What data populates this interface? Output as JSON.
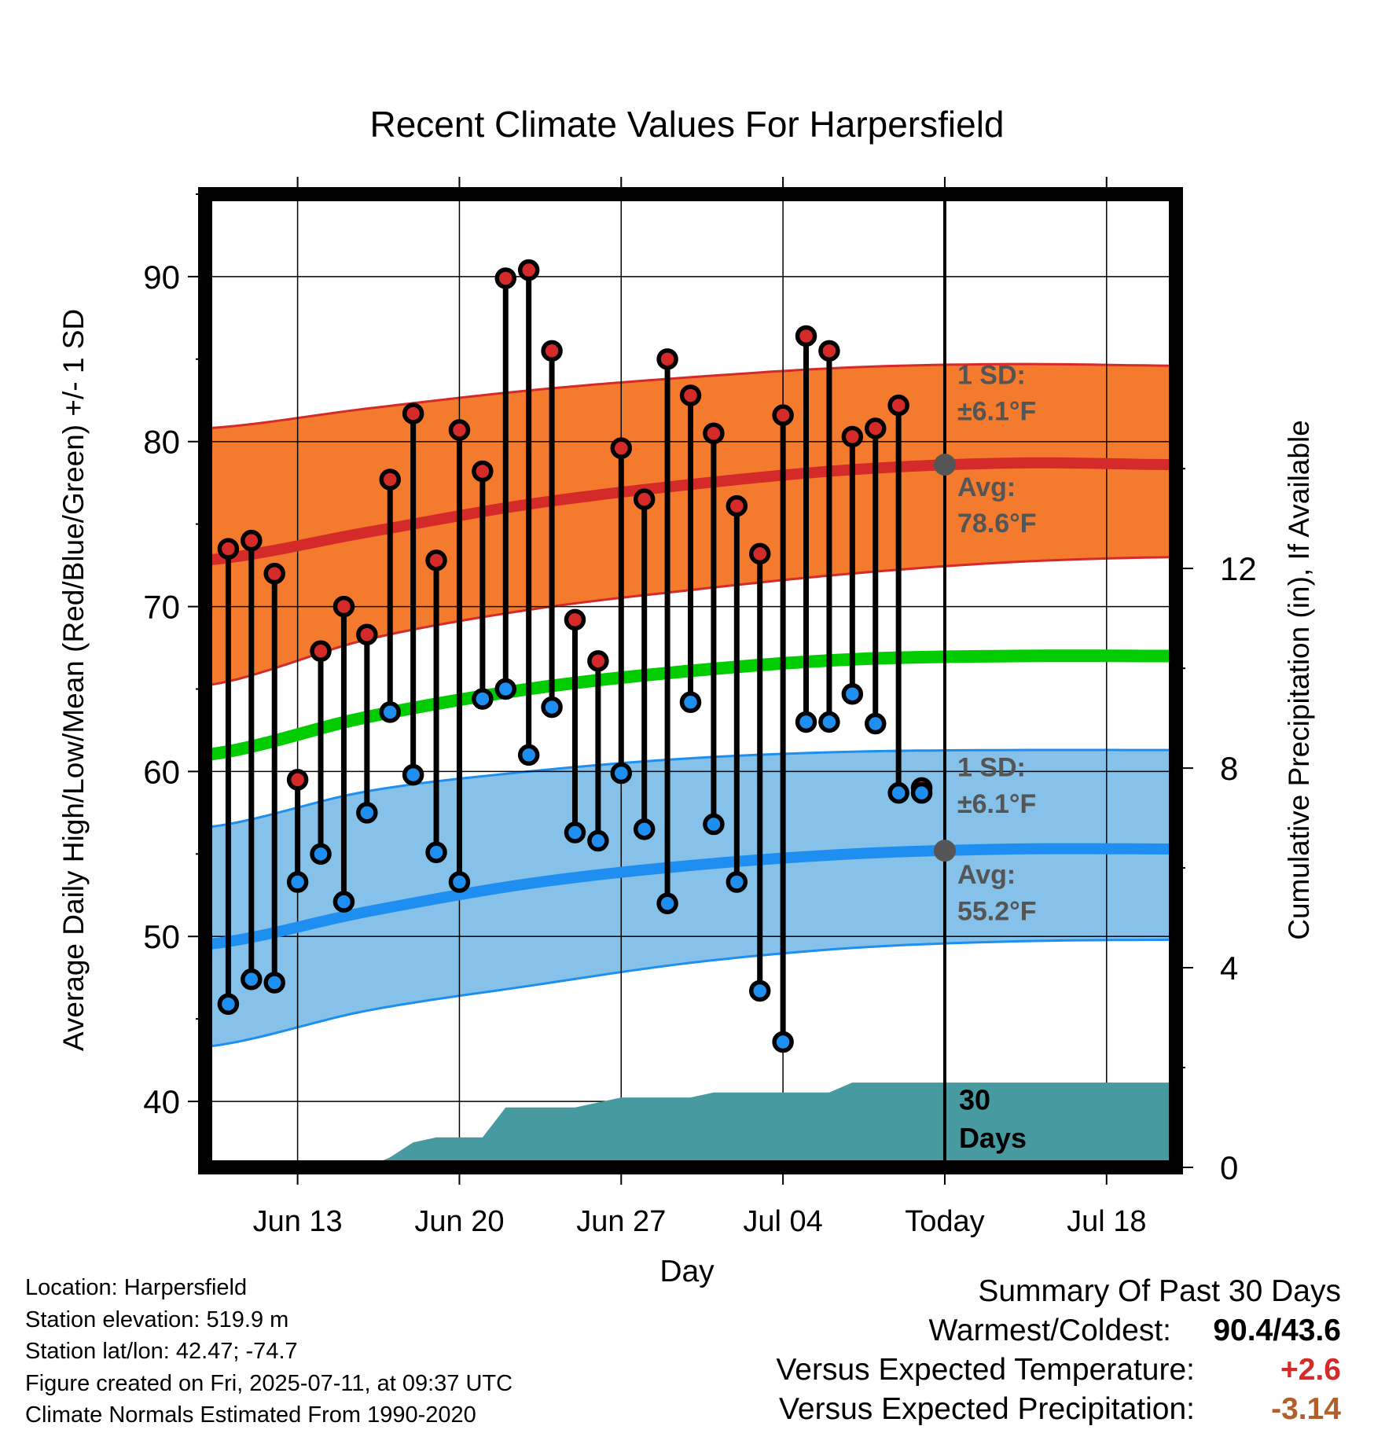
{
  "chart_data": {
    "type": "line",
    "title": "Recent Climate Values For Harpersfield",
    "xlabel": "Day",
    "ylabel": "Average Daily High/Low/Mean (Red/Blue/Green) +/- 1 SD",
    "y2label": "Cumulative Precipitation (in), If Available",
    "x_tick_labels": [
      "Jun 13",
      "Jun 20",
      "Jun 27",
      "Jul 04",
      "Today",
      "Jul 18"
    ],
    "y_ticks": [
      40,
      50,
      60,
      70,
      80,
      90
    ],
    "y2_ticks": [
      0,
      4,
      8,
      12
    ],
    "ylim": [
      36,
      95
    ],
    "y2lim": [
      0,
      19.5
    ],
    "xlim": [
      "2025-06-09",
      "2025-07-21"
    ],
    "today": "2025-07-11",
    "grid": true,
    "series": [
      {
        "name": "High",
        "color": "#d42a2a",
        "dates": [
          "2025-06-10",
          "2025-06-11",
          "2025-06-12",
          "2025-06-13",
          "2025-06-14",
          "2025-06-15",
          "2025-06-16",
          "2025-06-17",
          "2025-06-18",
          "2025-06-19",
          "2025-06-20",
          "2025-06-21",
          "2025-06-22",
          "2025-06-23",
          "2025-06-24",
          "2025-06-25",
          "2025-06-26",
          "2025-06-27",
          "2025-06-28",
          "2025-06-29",
          "2025-06-30",
          "2025-07-01",
          "2025-07-02",
          "2025-07-03",
          "2025-07-04",
          "2025-07-05",
          "2025-07-06",
          "2025-07-07",
          "2025-07-08",
          "2025-07-09",
          "2025-07-10"
        ],
        "values": [
          73.5,
          74.0,
          72.0,
          59.5,
          67.3,
          70.0,
          68.3,
          77.7,
          81.7,
          72.8,
          80.7,
          78.2,
          89.9,
          90.4,
          85.5,
          69.2,
          66.7,
          79.6,
          76.5,
          85.0,
          82.8,
          80.5,
          76.1,
          73.2,
          81.6,
          86.4,
          85.5,
          80.3,
          80.8,
          82.2,
          59.0
        ]
      },
      {
        "name": "Low",
        "color": "#1e8ff0",
        "dates": [
          "2025-06-10",
          "2025-06-11",
          "2025-06-12",
          "2025-06-13",
          "2025-06-14",
          "2025-06-15",
          "2025-06-16",
          "2025-06-17",
          "2025-06-18",
          "2025-06-19",
          "2025-06-20",
          "2025-06-21",
          "2025-06-22",
          "2025-06-23",
          "2025-06-24",
          "2025-06-25",
          "2025-06-26",
          "2025-06-27",
          "2025-06-28",
          "2025-06-29",
          "2025-06-30",
          "2025-07-01",
          "2025-07-02",
          "2025-07-03",
          "2025-07-04",
          "2025-07-05",
          "2025-07-06",
          "2025-07-07",
          "2025-07-08",
          "2025-07-09",
          "2025-07-10"
        ],
        "values": [
          45.9,
          47.4,
          47.2,
          53.3,
          55.0,
          52.1,
          57.5,
          63.6,
          59.8,
          55.1,
          53.3,
          64.4,
          65.0,
          61.0,
          63.9,
          56.3,
          55.8,
          59.9,
          56.5,
          52.0,
          64.2,
          56.8,
          53.3,
          46.7,
          43.6,
          63.0,
          63.0,
          64.7,
          62.9,
          58.7,
          58.7
        ]
      }
    ],
    "normals": {
      "dates": [
        "2025-06-09",
        "2025-06-16",
        "2025-06-23",
        "2025-06-30",
        "2025-07-07",
        "2025-07-14",
        "2025-07-21"
      ],
      "high_avg": [
        72.8,
        74.5,
        76.2,
        77.4,
        78.3,
        78.7,
        78.6
      ],
      "high_upper": [
        80.8,
        82.0,
        83.1,
        83.9,
        84.5,
        84.7,
        84.6
      ],
      "high_lower": [
        65.2,
        68.0,
        69.8,
        71.0,
        72.0,
        72.7,
        73.0
      ],
      "mean_avg": [
        61.0,
        63.3,
        65.0,
        66.1,
        66.8,
        67.0,
        67.0
      ],
      "low_avg": [
        49.5,
        51.5,
        53.2,
        54.3,
        55.0,
        55.3,
        55.3
      ],
      "low_upper": [
        56.6,
        58.8,
        60.0,
        60.8,
        61.2,
        61.3,
        61.3
      ],
      "low_lower": [
        43.3,
        45.5,
        47.0,
        48.4,
        49.3,
        49.7,
        49.8
      ]
    },
    "precipitation": {
      "dates": [
        "2025-06-10",
        "2025-06-16",
        "2025-06-17",
        "2025-06-18",
        "2025-06-19",
        "2025-06-20",
        "2025-06-21",
        "2025-06-22",
        "2025-06-25",
        "2025-06-26",
        "2025-06-27",
        "2025-06-30",
        "2025-07-01",
        "2025-07-06",
        "2025-07-07",
        "2025-07-08",
        "2025-07-21"
      ],
      "values": [
        0.0,
        0.0,
        0.2,
        0.5,
        0.6,
        0.6,
        0.6,
        1.2,
        1.2,
        1.3,
        1.4,
        1.4,
        1.5,
        1.5,
        1.7,
        1.7,
        1.7
      ]
    },
    "annotations": {
      "high_sd_label": "1 SD:",
      "high_sd_value": "±6.1°F",
      "high_avg_label": "Avg:",
      "high_avg_value": "78.6°F",
      "low_sd_label": "1 SD:",
      "low_sd_value": "±6.1°F",
      "low_avg_label": "Avg:",
      "low_avg_value": "55.2°F",
      "precip_days_line1": "30",
      "precip_days_line2": "Days"
    },
    "colors": {
      "high_band": "#f47b2e",
      "high_line": "#d42a2a",
      "mean_line": "#00cc00",
      "low_band": "#85c1e8",
      "low_line": "#1e8ff0",
      "precip": "#479ba0",
      "annotation_text": "#555555"
    }
  },
  "footer": {
    "location": "Location: Harpersfield",
    "elevation": "Station elevation: 519.9 m",
    "latlon": "Station lat/lon: 42.47; -74.7",
    "created": "Figure created on Fri, 2025-07-11, at 09:37 UTC",
    "normals": "Climate Normals Estimated From 1990-2020"
  },
  "summary": {
    "title": "Summary Of Past 30 Days",
    "warmest_coldest_label": "Warmest/Coldest:",
    "warmest_coldest_value": "90.4/43.6",
    "temp_label": "Versus Expected Temperature:",
    "temp_value": "+2.6",
    "temp_color": "#d42a2a",
    "precip_label": "Versus Expected Precipitation:",
    "precip_value": "-3.14",
    "precip_color": "#b0602a"
  }
}
